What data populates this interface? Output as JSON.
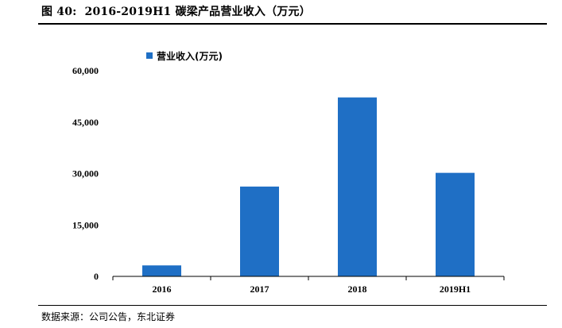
{
  "figure": {
    "label": "图 40:",
    "title": "2016-2019H1 碳梁产品营业收入（万元）",
    "source": "数据来源：公司公告，东北证券"
  },
  "chart_data": {
    "type": "bar",
    "categories": [
      "2016",
      "2017",
      "2018",
      "2019H1"
    ],
    "series": [
      {
        "name": "营业收入(万元)",
        "values": [
          3200,
          26200,
          52200,
          30200
        ],
        "color": "#1f6fc5"
      }
    ],
    "ylim": [
      0,
      60000
    ],
    "yticks": [
      0,
      15000,
      30000,
      45000,
      60000
    ],
    "ytick_labels": [
      "0",
      "15,000",
      "30,000",
      "45,000",
      "60,000"
    ],
    "legend_position": "top-left",
    "grid": false,
    "xlabel": "",
    "ylabel": ""
  }
}
